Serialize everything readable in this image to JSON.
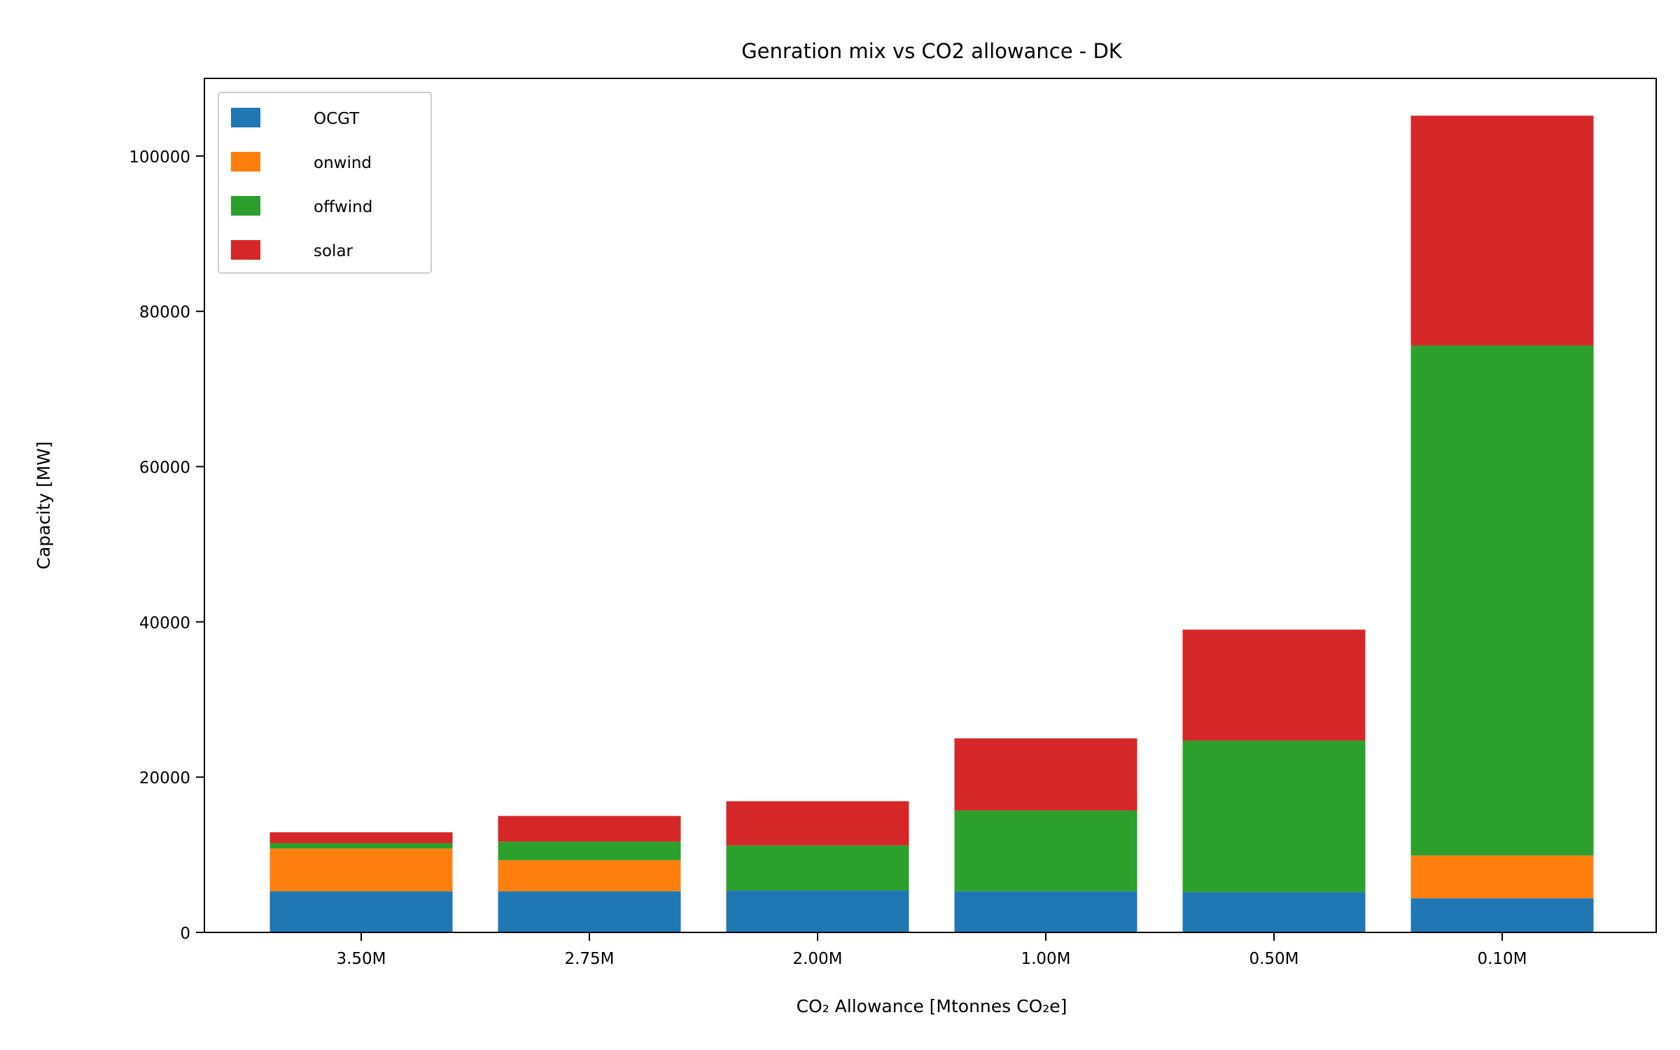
{
  "chart_data": {
    "type": "bar",
    "stacked": true,
    "title": "Genration mix vs CO2 allowance - DK",
    "xlabel": "CO₂ Allowance [Mtonnes CO₂e]",
    "ylabel": "Capacity [MW]",
    "categories": [
      "3.50M",
      "2.75M",
      "2.00M",
      "1.00M",
      "0.50M",
      "0.10M"
    ],
    "ylim": [
      0,
      110000
    ],
    "yticks": [
      0,
      20000,
      40000,
      60000,
      80000,
      100000
    ],
    "grid": false,
    "legend_position": "top-left",
    "series": [
      {
        "name": "OCGT",
        "color": "#1f77b4",
        "values": [
          5300,
          5300,
          5400,
          5300,
          5200,
          4400
        ]
      },
      {
        "name": "onwind",
        "color": "#ff7f0e",
        "values": [
          5500,
          4000,
          0,
          0,
          0,
          5500
        ]
      },
      {
        "name": "offwind",
        "color": "#2ca02c",
        "values": [
          700,
          2400,
          5800,
          10400,
          19500,
          65700
        ]
      },
      {
        "name": "solar",
        "color": "#d62728",
        "values": [
          1400,
          3300,
          5700,
          9300,
          14300,
          29600
        ]
      }
    ]
  }
}
